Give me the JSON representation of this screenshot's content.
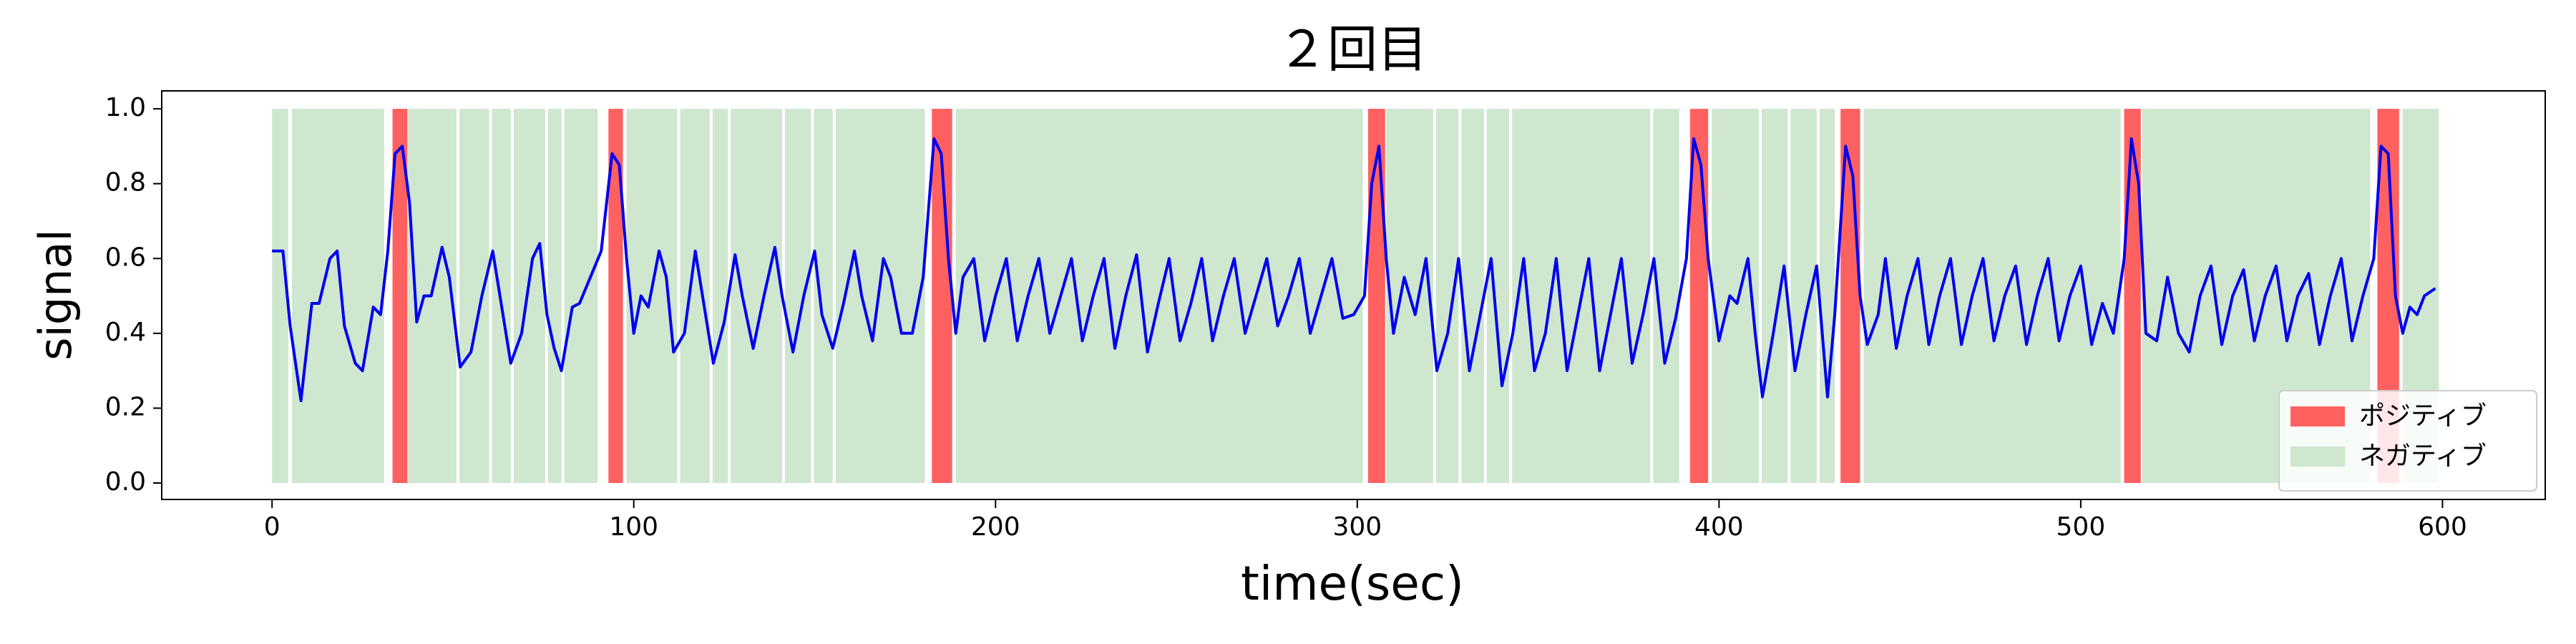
{
  "chart_data": {
    "type": "line",
    "title": "２回目",
    "x_label": "time(sec)",
    "y_label": "signal",
    "xlim": [
      -30.5,
      628.4
    ],
    "ylim": [
      -0.044,
      1.048
    ],
    "xticks": [
      0,
      100,
      200,
      300,
      400,
      500,
      600
    ],
    "yticks": [
      {
        "value": 0,
        "label": "0.0"
      },
      0.2,
      0.4,
      0.6,
      0.8,
      {
        "value": 1,
        "label": "1.0"
      }
    ],
    "legend": "lower right",
    "spans": [
      {
        "name": "ポジティブ",
        "color": "#ff6060",
        "y_range": [
          0,
          1
        ],
        "intervals": [
          [
            33.3,
            37.4
          ],
          [
            93,
            97
          ],
          [
            182.4,
            188
          ],
          [
            303,
            307.7
          ],
          [
            392,
            397
          ],
          [
            433.6,
            439
          ],
          [
            512,
            516.6
          ],
          [
            582,
            588
          ]
        ]
      },
      {
        "name": "ネガティブ",
        "color": "#cfe6cf",
        "y_range": [
          0,
          1
        ],
        "intervals": [
          [
            0,
            4.5
          ],
          [
            5.5,
            31
          ],
          [
            37.5,
            51
          ],
          [
            51.8,
            60
          ],
          [
            60.8,
            66
          ],
          [
            66.8,
            75.5
          ],
          [
            76.3,
            80
          ],
          [
            80.8,
            90
          ],
          [
            98,
            112
          ],
          [
            112.8,
            121
          ],
          [
            121.8,
            126
          ],
          [
            126.8,
            141
          ],
          [
            141.8,
            149
          ],
          [
            149.8,
            155
          ],
          [
            155.8,
            180.5
          ],
          [
            189,
            301.5
          ],
          [
            308,
            321
          ],
          [
            321.8,
            328
          ],
          [
            328.8,
            335
          ],
          [
            335.8,
            342
          ],
          [
            342.8,
            381
          ],
          [
            381.8,
            389
          ],
          [
            398,
            411
          ],
          [
            411.8,
            419
          ],
          [
            419.8,
            427
          ],
          [
            427.8,
            432
          ],
          [
            440,
            511
          ],
          [
            517,
            580
          ],
          [
            589,
            599
          ]
        ]
      }
    ],
    "series": [
      {
        "color": "#0000ee",
        "x": [
          0,
          3,
          5,
          8,
          11,
          13,
          16,
          18,
          20,
          23,
          25,
          28,
          30,
          32,
          34,
          36,
          38,
          40,
          42,
          44,
          47,
          49,
          52,
          55,
          58,
          61,
          63,
          66,
          69,
          72,
          74,
          76,
          78,
          80,
          83,
          85,
          88,
          91,
          94,
          96,
          98,
          100,
          102,
          104,
          107,
          109,
          111,
          114,
          117,
          119,
          122,
          125,
          128,
          130,
          133,
          136,
          139,
          141,
          144,
          147,
          150,
          152,
          155,
          158,
          161,
          163,
          166,
          169,
          171,
          174,
          177,
          180,
          183,
          185,
          187,
          189,
          191,
          194,
          197,
          200,
          203,
          206,
          209,
          212,
          215,
          218,
          221,
          224,
          227,
          230,
          233,
          236,
          239,
          242,
          245,
          248,
          251,
          254,
          257,
          260,
          263,
          266,
          269,
          272,
          275,
          278,
          281,
          284,
          287,
          290,
          293,
          296,
          299,
          302,
          304,
          306,
          308,
          310,
          313,
          316,
          319,
          322,
          325,
          328,
          331,
          334,
          337,
          340,
          343,
          346,
          349,
          352,
          355,
          358,
          361,
          364,
          367,
          370,
          373,
          376,
          379,
          382,
          385,
          388,
          391,
          393,
          395,
          397,
          400,
          403,
          405,
          408,
          410,
          412,
          415,
          418,
          421,
          424,
          427,
          430,
          432,
          435,
          437,
          439,
          441,
          444,
          446,
          449,
          452,
          455,
          458,
          461,
          464,
          467,
          470,
          473,
          476,
          479,
          482,
          485,
          488,
          491,
          494,
          497,
          500,
          503,
          506,
          509,
          512,
          514,
          516,
          518,
          521,
          524,
          527,
          530,
          533,
          536,
          539,
          542,
          545,
          548,
          551,
          554,
          557,
          560,
          563,
          566,
          569,
          572,
          575,
          578,
          581,
          583,
          585,
          587,
          589,
          591,
          593,
          595,
          598
        ],
        "values": [
          0.62,
          0.62,
          0.42,
          0.22,
          0.48,
          0.48,
          0.6,
          0.62,
          0.42,
          0.32,
          0.3,
          0.47,
          0.45,
          0.62,
          0.88,
          0.9,
          0.75,
          0.43,
          0.5,
          0.5,
          0.63,
          0.55,
          0.31,
          0.35,
          0.5,
          0.62,
          0.5,
          0.32,
          0.4,
          0.6,
          0.64,
          0.45,
          0.36,
          0.3,
          0.47,
          0.48,
          0.55,
          0.62,
          0.88,
          0.85,
          0.6,
          0.4,
          0.5,
          0.47,
          0.62,
          0.55,
          0.35,
          0.4,
          0.62,
          0.5,
          0.32,
          0.43,
          0.61,
          0.5,
          0.36,
          0.5,
          0.63,
          0.5,
          0.35,
          0.5,
          0.62,
          0.45,
          0.36,
          0.48,
          0.62,
          0.5,
          0.38,
          0.6,
          0.55,
          0.4,
          0.4,
          0.55,
          0.92,
          0.88,
          0.6,
          0.4,
          0.55,
          0.6,
          0.38,
          0.5,
          0.6,
          0.38,
          0.5,
          0.6,
          0.4,
          0.5,
          0.6,
          0.38,
          0.5,
          0.6,
          0.36,
          0.5,
          0.61,
          0.35,
          0.48,
          0.6,
          0.38,
          0.48,
          0.6,
          0.38,
          0.5,
          0.6,
          0.4,
          0.5,
          0.6,
          0.42,
          0.5,
          0.6,
          0.4,
          0.5,
          0.6,
          0.44,
          0.45,
          0.5,
          0.8,
          0.9,
          0.6,
          0.4,
          0.55,
          0.45,
          0.6,
          0.3,
          0.4,
          0.6,
          0.3,
          0.45,
          0.6,
          0.26,
          0.4,
          0.6,
          0.3,
          0.4,
          0.6,
          0.3,
          0.45,
          0.6,
          0.3,
          0.45,
          0.6,
          0.32,
          0.45,
          0.6,
          0.32,
          0.44,
          0.6,
          0.92,
          0.85,
          0.6,
          0.38,
          0.5,
          0.48,
          0.6,
          0.4,
          0.23,
          0.4,
          0.58,
          0.3,
          0.45,
          0.58,
          0.23,
          0.45,
          0.9,
          0.82,
          0.5,
          0.37,
          0.45,
          0.6,
          0.36,
          0.5,
          0.6,
          0.37,
          0.5,
          0.6,
          0.37,
          0.5,
          0.6,
          0.38,
          0.5,
          0.58,
          0.37,
          0.5,
          0.6,
          0.38,
          0.5,
          0.58,
          0.37,
          0.48,
          0.4,
          0.6,
          0.92,
          0.8,
          0.4,
          0.38,
          0.55,
          0.4,
          0.35,
          0.5,
          0.58,
          0.37,
          0.5,
          0.57,
          0.38,
          0.5,
          0.58,
          0.38,
          0.5,
          0.56,
          0.37,
          0.5,
          0.6,
          0.38,
          0.5,
          0.6,
          0.9,
          0.88,
          0.5,
          0.4,
          0.47,
          0.45,
          0.5,
          0.52
        ]
      }
    ]
  }
}
